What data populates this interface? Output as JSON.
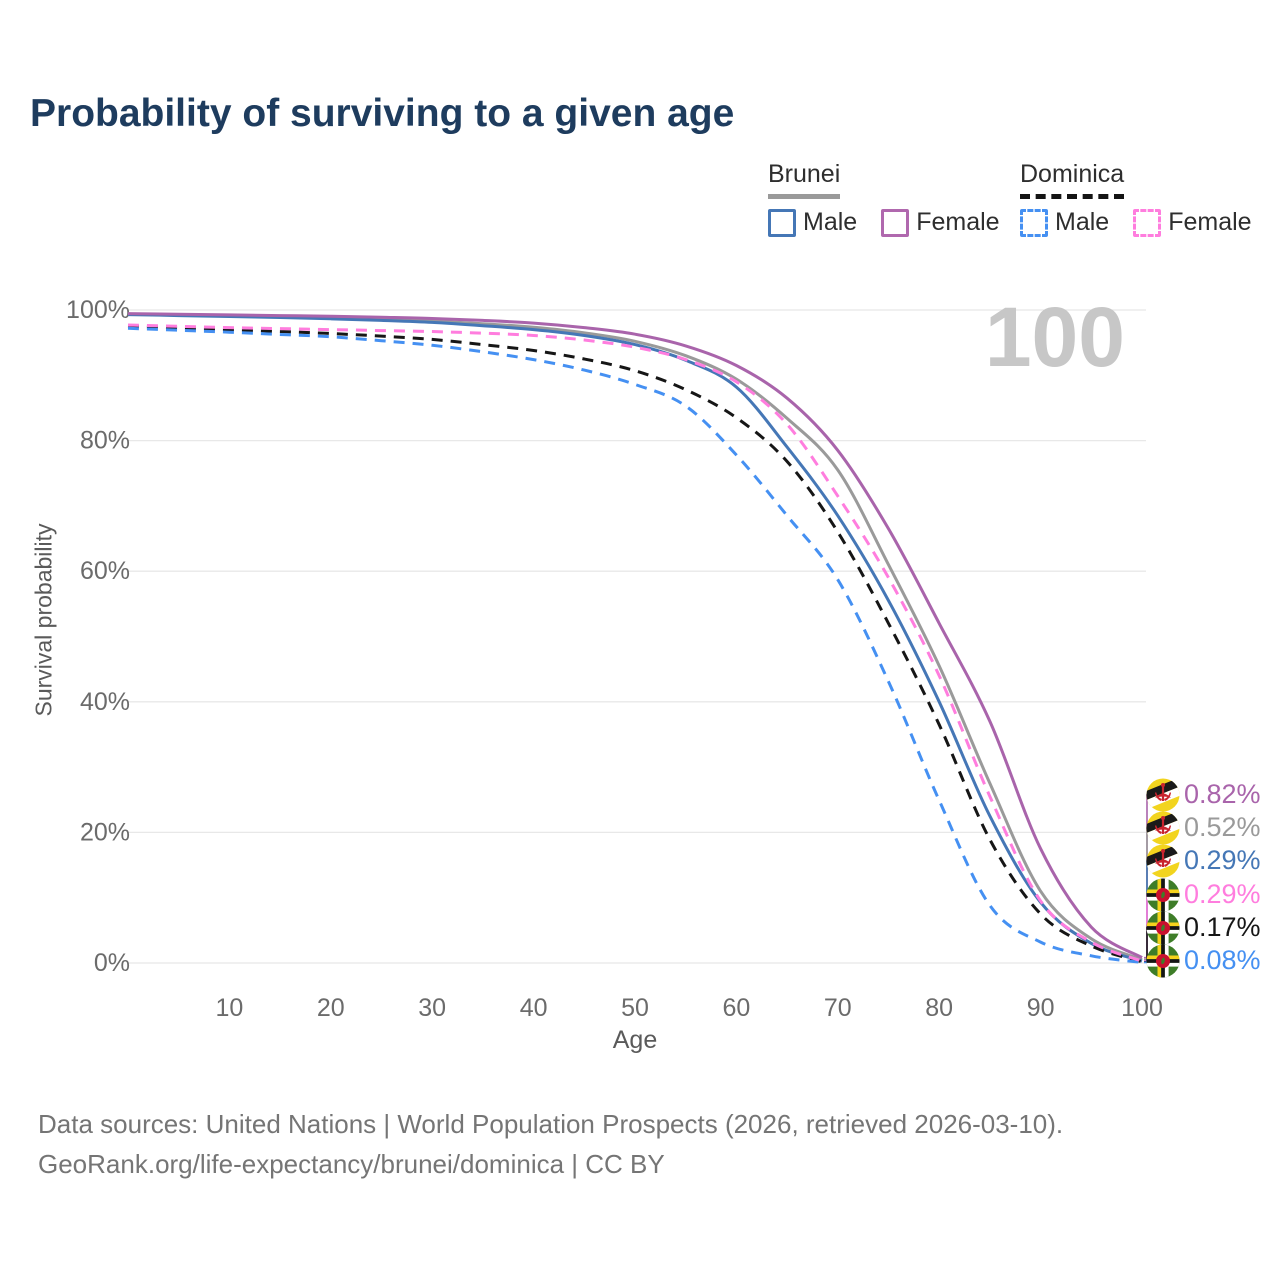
{
  "title": "Probability of surviving to a given age",
  "watermark": "100",
  "legend": {
    "groups": [
      {
        "name": "Brunei",
        "line_style": "solid",
        "line_color": "#9a9a9a",
        "items": [
          {
            "label": "Male",
            "color": "#4577b6",
            "style": "solid"
          },
          {
            "label": "Female",
            "color": "#b068ae",
            "style": "solid"
          }
        ]
      },
      {
        "name": "Dominica",
        "line_style": "dashed",
        "line_color": "#141414",
        "items": [
          {
            "label": "Male",
            "color": "#4590f2",
            "style": "dashed"
          },
          {
            "label": "Female",
            "color": "#ff7dde",
            "style": "dashed"
          }
        ]
      }
    ]
  },
  "chart_data": {
    "type": "line",
    "title": "Probability of surviving to a given age",
    "xlabel": "Age",
    "ylabel": "Survival probability",
    "xlim": [
      0,
      100
    ],
    "ylim": [
      0,
      100
    ],
    "grid": "horizontal",
    "legend_position": "top-right",
    "x_ticks": [
      10,
      20,
      30,
      40,
      50,
      60,
      70,
      80,
      90,
      100
    ],
    "y_ticks": [
      {
        "value": 100,
        "label": "100%"
      },
      {
        "value": 80,
        "label": "80%"
      },
      {
        "value": 60,
        "label": "60%"
      },
      {
        "value": 40,
        "label": "40%"
      },
      {
        "value": 20,
        "label": "20%"
      },
      {
        "value": 0,
        "label": "0%"
      }
    ],
    "series": [
      {
        "name": "Brunei Female",
        "color": "#a964ab",
        "dashed": false,
        "flag": "brunei",
        "end_label": "0.82%",
        "points": [
          [
            0,
            99.45
          ],
          [
            5,
            99.35
          ],
          [
            10,
            99.25
          ],
          [
            15,
            99.15
          ],
          [
            20,
            99.05
          ],
          [
            25,
            98.9
          ],
          [
            30,
            98.7
          ],
          [
            35,
            98.4
          ],
          [
            40,
            98.0
          ],
          [
            45,
            97.3
          ],
          [
            50,
            96.3
          ],
          [
            55,
            94.5
          ],
          [
            60,
            91.5
          ],
          [
            65,
            86.5
          ],
          [
            70,
            78.5
          ],
          [
            75,
            66.5
          ],
          [
            80,
            52.0
          ],
          [
            85,
            37.0
          ],
          [
            90,
            17.5
          ],
          [
            95,
            5.5
          ],
          [
            100,
            0.82
          ]
        ]
      },
      {
        "name": "Brunei",
        "color": "#9a9a9a",
        "dashed": false,
        "flag": "brunei",
        "end_label": "0.52%",
        "points": [
          [
            0,
            99.35
          ],
          [
            5,
            99.25
          ],
          [
            10,
            99.1
          ],
          [
            15,
            98.95
          ],
          [
            20,
            98.75
          ],
          [
            25,
            98.55
          ],
          [
            30,
            98.3
          ],
          [
            35,
            97.9
          ],
          [
            40,
            97.35
          ],
          [
            45,
            96.5
          ],
          [
            50,
            95.2
          ],
          [
            55,
            93.0
          ],
          [
            60,
            89.4
          ],
          [
            65,
            83.4
          ],
          [
            70,
            75.5
          ],
          [
            75,
            61.0
          ],
          [
            80,
            45.5
          ],
          [
            85,
            27.5
          ],
          [
            90,
            11.0
          ],
          [
            95,
            3.7
          ],
          [
            100,
            0.52
          ]
        ]
      },
      {
        "name": "Brunei Male",
        "color": "#4577b6",
        "dashed": false,
        "flag": "brunei",
        "end_label": "0.29%",
        "points": [
          [
            0,
            99.3
          ],
          [
            5,
            99.15
          ],
          [
            10,
            99.0
          ],
          [
            15,
            98.85
          ],
          [
            20,
            98.65
          ],
          [
            25,
            98.4
          ],
          [
            30,
            98.1
          ],
          [
            35,
            97.6
          ],
          [
            40,
            97.0
          ],
          [
            45,
            96.1
          ],
          [
            50,
            94.7
          ],
          [
            55,
            92.3
          ],
          [
            60,
            88.2
          ],
          [
            65,
            79.0
          ],
          [
            70,
            68.5
          ],
          [
            75,
            55.5
          ],
          [
            80,
            40.0
          ],
          [
            85,
            22.5
          ],
          [
            90,
            9.3
          ],
          [
            95,
            3.0
          ],
          [
            100,
            0.29
          ]
        ]
      },
      {
        "name": "Dominica Female",
        "color": "#ff7dde",
        "dashed": true,
        "flag": "dominica",
        "end_label": "0.29%",
        "points": [
          [
            0,
            97.7
          ],
          [
            5,
            97.5
          ],
          [
            10,
            97.3
          ],
          [
            15,
            97.15
          ],
          [
            20,
            97.0
          ],
          [
            25,
            96.85
          ],
          [
            30,
            96.7
          ],
          [
            35,
            96.45
          ],
          [
            40,
            96.1
          ],
          [
            45,
            95.4
          ],
          [
            50,
            94.3
          ],
          [
            55,
            92.4
          ],
          [
            60,
            89.0
          ],
          [
            65,
            82.5
          ],
          [
            70,
            71.5
          ],
          [
            75,
            59.0
          ],
          [
            80,
            44.0
          ],
          [
            85,
            25.5
          ],
          [
            90,
            9.5
          ],
          [
            95,
            3.2
          ],
          [
            100,
            0.29
          ]
        ]
      },
      {
        "name": "Dominica",
        "color": "#161616",
        "dashed": true,
        "flag": "dominica",
        "end_label": "0.17%",
        "points": [
          [
            0,
            97.5
          ],
          [
            5,
            97.25
          ],
          [
            10,
            97.0
          ],
          [
            15,
            96.7
          ],
          [
            20,
            96.4
          ],
          [
            25,
            96.0
          ],
          [
            30,
            95.5
          ],
          [
            35,
            94.7
          ],
          [
            40,
            93.8
          ],
          [
            45,
            92.5
          ],
          [
            50,
            90.7
          ],
          [
            55,
            87.8
          ],
          [
            60,
            83.5
          ],
          [
            65,
            76.8
          ],
          [
            70,
            66.0
          ],
          [
            75,
            52.0
          ],
          [
            80,
            36.5
          ],
          [
            85,
            18.9
          ],
          [
            90,
            7.5
          ],
          [
            95,
            2.6
          ],
          [
            100,
            0.17
          ]
        ]
      },
      {
        "name": "Dominica Male",
        "color": "#4590f2",
        "dashed": true,
        "flag": "dominica",
        "end_label": "0.08%",
        "points": [
          [
            0,
            97.2
          ],
          [
            5,
            96.9
          ],
          [
            10,
            96.6
          ],
          [
            15,
            96.25
          ],
          [
            20,
            95.9
          ],
          [
            25,
            95.3
          ],
          [
            30,
            94.6
          ],
          [
            35,
            93.6
          ],
          [
            40,
            92.4
          ],
          [
            45,
            90.8
          ],
          [
            50,
            88.6
          ],
          [
            55,
            85.3
          ],
          [
            60,
            77.8
          ],
          [
            65,
            68.5
          ],
          [
            70,
            58.7
          ],
          [
            75,
            43.1
          ],
          [
            80,
            24.9
          ],
          [
            85,
            8.8
          ],
          [
            90,
            3.2
          ],
          [
            95,
            1.1
          ],
          [
            100,
            0.08
          ]
        ]
      }
    ]
  },
  "footer": {
    "line1": "Data sources: United Nations | World Population Prospects (2026, retrieved 2026-03-10).",
    "line2": "GeoRank.org/life-expectancy/brunei/dominica | CC BY"
  }
}
